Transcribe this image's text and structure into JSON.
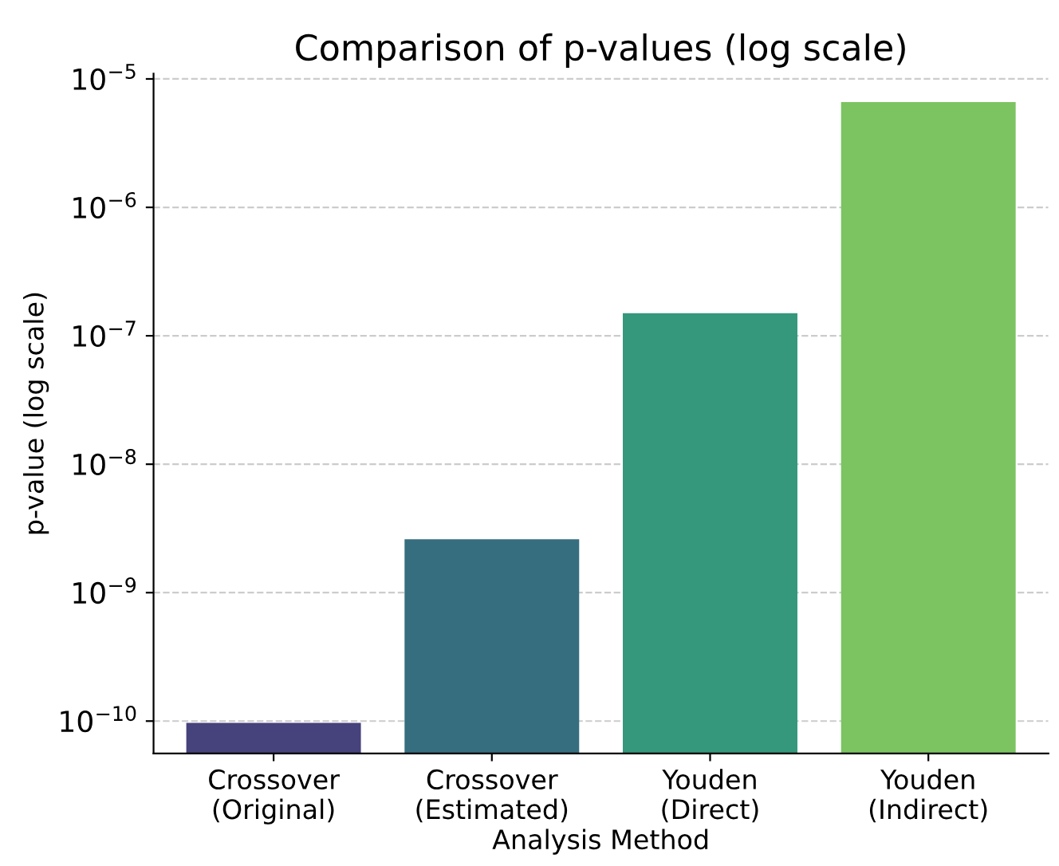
{
  "chart_data": {
    "type": "bar",
    "title": "Comparison of p-values (log scale)",
    "xlabel": "Analysis Method",
    "ylabel": "p-value (log scale)",
    "categories": [
      "Crossover\n(Original)",
      "Crossover\n(Estimated)",
      "Youden\n(Direct)",
      "Youden\n(Indirect)"
    ],
    "values": [
      9.7e-11,
      2.6e-09,
      1.5e-07,
      6.6e-06
    ],
    "colors": [
      "#46427c",
      "#366e80",
      "#35977b",
      "#7cc462"
    ],
    "log": true,
    "ylim": [
      5.6e-11,
      1.1e-05
    ],
    "yticks": [
      {
        "value": 1e-10,
        "label": "10$^{−10}$"
      },
      {
        "value": 1e-09,
        "label": "10$^{−9}$"
      },
      {
        "value": 1e-08,
        "label": "10$^{−8}$"
      },
      {
        "value": 1e-07,
        "label": "10$^{−7}$"
      },
      {
        "value": 1e-06,
        "label": "10$^{−6}$"
      },
      {
        "value": 1e-05,
        "label": "10$^{−5}$"
      }
    ],
    "grid": "y"
  }
}
